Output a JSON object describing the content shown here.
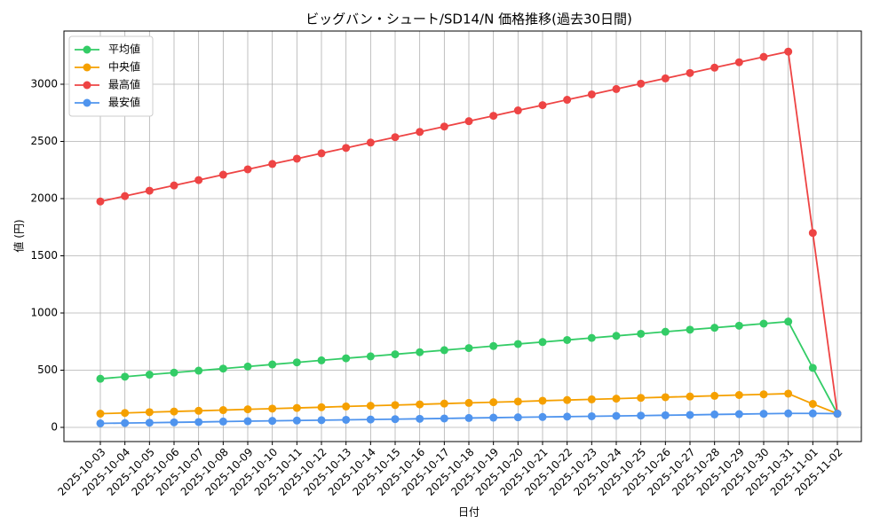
{
  "chart_data": {
    "type": "line",
    "title": "ビッグバン・シュート/SD14/N 価格推移(過去30日間)",
    "x_label": "日付",
    "y_label": "値 (円)",
    "categories": [
      "2025-10-03",
      "2025-10-04",
      "2025-10-05",
      "2025-10-06",
      "2025-10-07",
      "2025-10-08",
      "2025-10-09",
      "2025-10-10",
      "2025-10-11",
      "2025-10-12",
      "2025-10-13",
      "2025-10-14",
      "2025-10-15",
      "2025-10-16",
      "2025-10-17",
      "2025-10-18",
      "2025-10-19",
      "2025-10-20",
      "2025-10-21",
      "2025-10-22",
      "2025-10-23",
      "2025-10-24",
      "2025-10-25",
      "2025-10-26",
      "2025-10-27",
      "2025-10-28",
      "2025-10-29",
      "2025-10-30",
      "2025-10-31",
      "2025-11-01",
      "2025-11-02"
    ],
    "series": [
      {
        "name": "平均値",
        "color": "#33cc66",
        "values": [
          425,
          443,
          461,
          479,
          496,
          514,
          532,
          550,
          568,
          586,
          604,
          621,
          639,
          657,
          675,
          693,
          711,
          729,
          746,
          764,
          782,
          800,
          818,
          836,
          854,
          871,
          889,
          907,
          925,
          520,
          120
        ]
      },
      {
        "name": "中央値",
        "color": "#f5a000",
        "values": [
          120,
          126,
          133,
          139,
          145,
          151,
          158,
          164,
          170,
          176,
          183,
          189,
          195,
          201,
          208,
          214,
          220,
          226,
          233,
          239,
          245,
          251,
          258,
          264,
          270,
          276,
          283,
          289,
          295,
          205,
          120
        ]
      },
      {
        "name": "最高値",
        "color": "#ee4444",
        "values": [
          1975,
          2022,
          2069,
          2115,
          2162,
          2209,
          2256,
          2303,
          2349,
          2396,
          2443,
          2490,
          2537,
          2583,
          2630,
          2677,
          2724,
          2771,
          2817,
          2864,
          2911,
          2958,
          3005,
          3051,
          3098,
          3145,
          3192,
          3239,
          3285,
          1700,
          120
        ]
      },
      {
        "name": "最安値",
        "color": "#4f94ee",
        "values": [
          35,
          38,
          41,
          44,
          47,
          51,
          54,
          57,
          60,
          63,
          66,
          69,
          72,
          75,
          78,
          82,
          85,
          88,
          91,
          94,
          97,
          100,
          103,
          106,
          109,
          113,
          116,
          119,
          122,
          122,
          120
        ]
      }
    ],
    "ylim": [
      -124,
      3465
    ],
    "yticks": [
      0,
      500,
      1000,
      1500,
      2000,
      2500,
      3000
    ],
    "grid": true,
    "legend": "upper-left"
  }
}
